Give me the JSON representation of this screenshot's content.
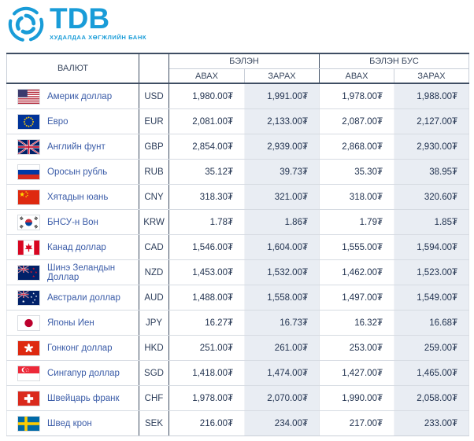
{
  "logo": {
    "text": "TDB",
    "tagline": "ХУДАЛДАА ХӨГЖЛИЙН БАНК",
    "color": "#199CD8"
  },
  "table": {
    "headers": {
      "currency": "ВАЛЮТ",
      "cash": "БЭЛЭН",
      "non_cash": "БЭЛЭН БУС",
      "buy": "АВАХ",
      "sell": "ЗАРАХ"
    },
    "rows": [
      {
        "flag": "us",
        "name": "Америк доллар",
        "code": "USD",
        "cash_buy": "1,980.00₮",
        "cash_sell": "1,991.00₮",
        "noncash_buy": "1,978.00₮",
        "noncash_sell": "1,988.00₮"
      },
      {
        "flag": "eu",
        "name": "Евро",
        "code": "EUR",
        "cash_buy": "2,081.00₮",
        "cash_sell": "2,133.00₮",
        "noncash_buy": "2,087.00₮",
        "noncash_sell": "2,127.00₮"
      },
      {
        "flag": "gb",
        "name": "Английн фунт",
        "code": "GBP",
        "cash_buy": "2,854.00₮",
        "cash_sell": "2,939.00₮",
        "noncash_buy": "2,868.00₮",
        "noncash_sell": "2,930.00₮"
      },
      {
        "flag": "ru",
        "name": "Оросын рубль",
        "code": "RUB",
        "cash_buy": "35.12₮",
        "cash_sell": "39.73₮",
        "noncash_buy": "35.30₮",
        "noncash_sell": "38.95₮"
      },
      {
        "flag": "cn",
        "name": "Хятадын юань",
        "code": "CNY",
        "cash_buy": "318.30₮",
        "cash_sell": "321.00₮",
        "noncash_buy": "318.00₮",
        "noncash_sell": "320.60₮"
      },
      {
        "flag": "kr",
        "name": "БНСУ-н Вон",
        "code": "KRW",
        "cash_buy": "1.78₮",
        "cash_sell": "1.86₮",
        "noncash_buy": "1.79₮",
        "noncash_sell": "1.85₮"
      },
      {
        "flag": "ca",
        "name": "Канад доллар",
        "code": "CAD",
        "cash_buy": "1,546.00₮",
        "cash_sell": "1,604.00₮",
        "noncash_buy": "1,555.00₮",
        "noncash_sell": "1,594.00₮"
      },
      {
        "flag": "nz",
        "name": "Шинэ Зеландын Доллар",
        "code": "NZD",
        "cash_buy": "1,453.00₮",
        "cash_sell": "1,532.00₮",
        "noncash_buy": "1,462.00₮",
        "noncash_sell": "1,523.00₮"
      },
      {
        "flag": "au",
        "name": "Австрали доллар",
        "code": "AUD",
        "cash_buy": "1,488.00₮",
        "cash_sell": "1,558.00₮",
        "noncash_buy": "1,497.00₮",
        "noncash_sell": "1,549.00₮"
      },
      {
        "flag": "jp",
        "name": "Японы Иен",
        "code": "JPY",
        "cash_buy": "16.27₮",
        "cash_sell": "16.73₮",
        "noncash_buy": "16.32₮",
        "noncash_sell": "16.68₮"
      },
      {
        "flag": "hk",
        "name": "Гонконг доллар",
        "code": "HKD",
        "cash_buy": "251.00₮",
        "cash_sell": "261.00₮",
        "noncash_buy": "253.00₮",
        "noncash_sell": "259.00₮"
      },
      {
        "flag": "sg",
        "name": "Сингапур доллар",
        "code": "SGD",
        "cash_buy": "1,418.00₮",
        "cash_sell": "1,474.00₮",
        "noncash_buy": "1,427.00₮",
        "noncash_sell": "1,465.00₮"
      },
      {
        "flag": "ch",
        "name": "Швейцарь франк",
        "code": "CHF",
        "cash_buy": "1,978.00₮",
        "cash_sell": "2,070.00₮",
        "noncash_buy": "1,990.00₮",
        "noncash_sell": "2,058.00₮"
      },
      {
        "flag": "se",
        "name": "Швед крон",
        "code": "SEK",
        "cash_buy": "216.00₮",
        "cash_sell": "234.00₮",
        "noncash_buy": "217.00₮",
        "noncash_sell": "233.00₮"
      }
    ]
  },
  "colors": {
    "accent_blue": "#199CD8",
    "header_border": "#3f4e63",
    "sell_column_bg": "#e9edf3",
    "currency_name_text": "#3b5ca8",
    "rate_value_text": "#223350"
  }
}
